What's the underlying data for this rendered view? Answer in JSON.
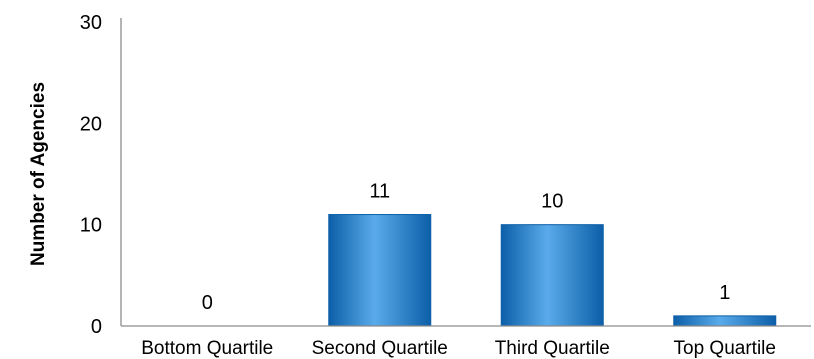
{
  "chart_data": {
    "type": "bar",
    "title": "",
    "xlabel": "",
    "ylabel": "Number of Agencies",
    "categories": [
      "Bottom Quartile",
      "Second Quartile",
      "Third Quartile",
      "Top Quartile"
    ],
    "values": [
      0,
      11,
      10,
      1
    ],
    "data_labels": [
      "0",
      "11",
      "10",
      "1"
    ],
    "ylim": [
      0,
      30
    ],
    "yticks": [
      0,
      10,
      20,
      30
    ],
    "ytick_labels": [
      "0",
      "10",
      "20",
      "30"
    ],
    "grid": false,
    "legend": "none",
    "colors": {
      "bar_fill": "#1e7fd4",
      "bar_dark": "#0c5fa8",
      "bar_light": "#5aabea",
      "axis": "#8c8c8c"
    }
  }
}
